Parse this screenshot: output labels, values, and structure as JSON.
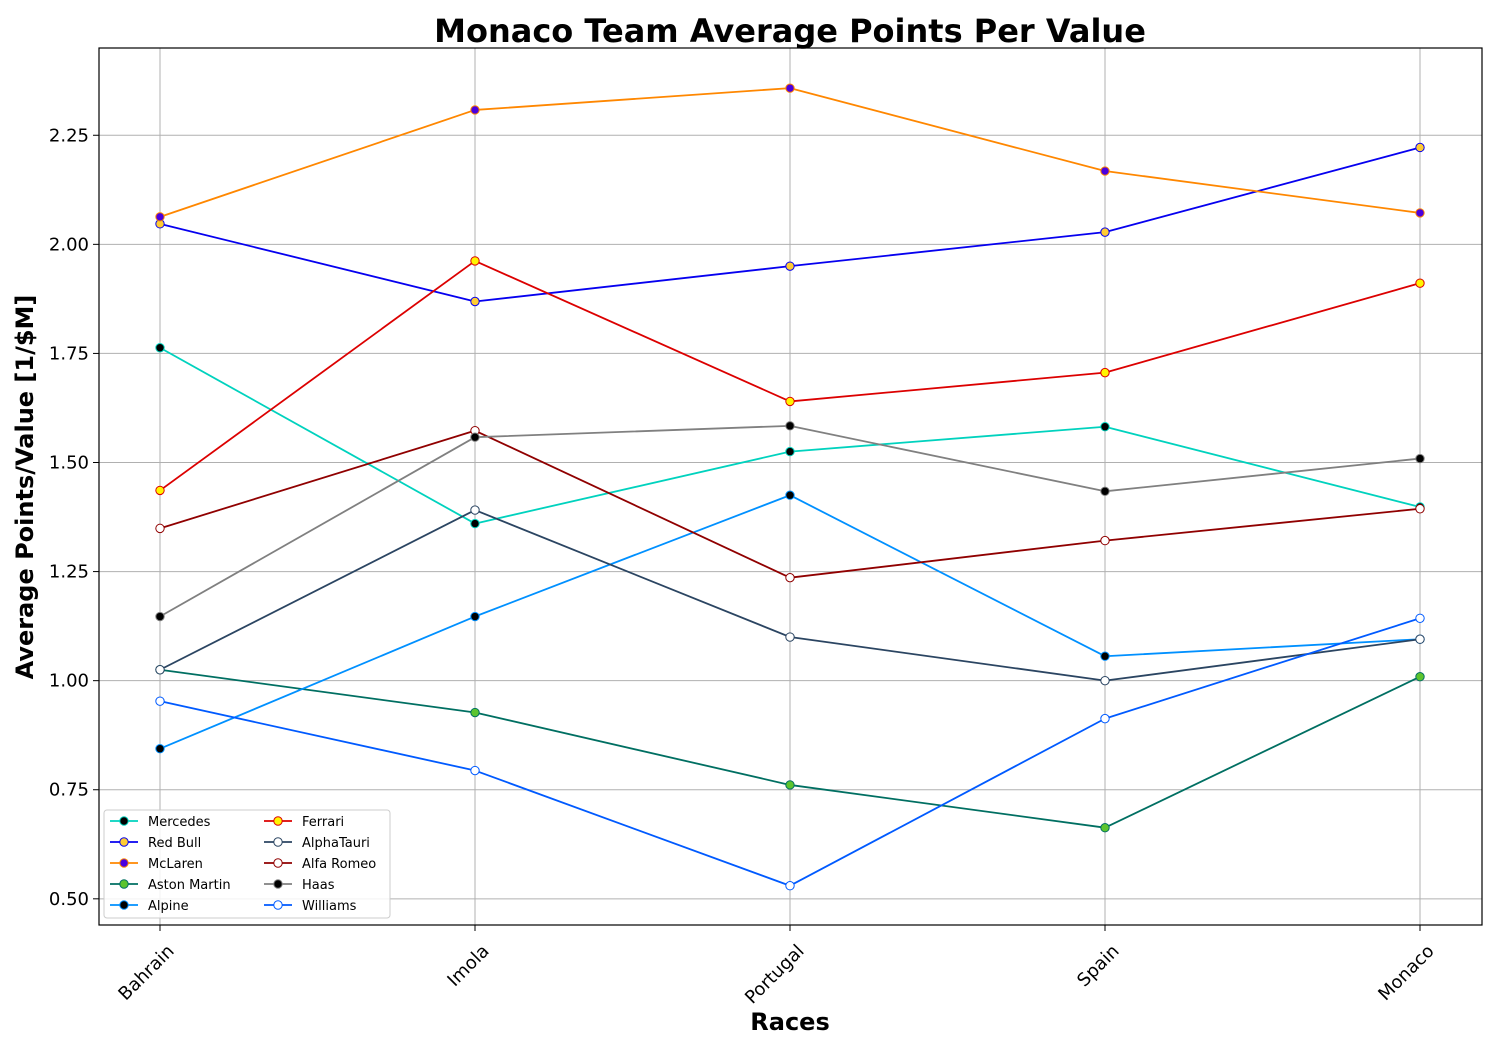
{
  "chart_data": {
    "type": "line",
    "title": "Monaco Team Average Points Per Value",
    "xlabel": "Races",
    "ylabel": "Average Points/Value [1/$M]",
    "categories": [
      "Bahrain",
      "Imola",
      "Portugal",
      "Spain",
      "Monaco"
    ],
    "ylim": [
      0.44,
      2.45
    ],
    "yticks": [
      0.5,
      0.75,
      1.0,
      1.25,
      1.5,
      1.75,
      2.0,
      2.25
    ],
    "ytick_labels": [
      "0.50",
      "0.75",
      "1.00",
      "1.25",
      "1.50",
      "1.75",
      "2.00",
      "2.25"
    ],
    "grid": true,
    "legend_placement": "lower-left",
    "legend_columns": 2,
    "series": [
      {
        "name": "Mercedes",
        "values": [
          1.763,
          1.36,
          1.525,
          1.582,
          1.398
        ],
        "line_color": "#00d2be",
        "marker_face": "#000000",
        "marker_edge": "#00d2be"
      },
      {
        "name": "Red Bull",
        "values": [
          2.047,
          1.869,
          1.95,
          2.028,
          2.222
        ],
        "line_color": "#0600ef",
        "marker_face": "#ffcc33",
        "marker_edge": "#0600ef"
      },
      {
        "name": "McLaren",
        "values": [
          2.063,
          2.308,
          2.358,
          2.168,
          2.072
        ],
        "line_color": "#ff8700",
        "marker_face": "#4a00e0",
        "marker_edge": "#ff8700"
      },
      {
        "name": "Aston Martin",
        "values": [
          1.025,
          0.927,
          0.761,
          0.663,
          1.009
        ],
        "line_color": "#006f62",
        "marker_face": "#5cc42e",
        "marker_edge": "#006f62"
      },
      {
        "name": "Alpine",
        "values": [
          0.844,
          1.147,
          1.425,
          1.056,
          1.095
        ],
        "line_color": "#0090ff",
        "marker_face": "#000000",
        "marker_edge": "#0090ff"
      },
      {
        "name": "Ferrari",
        "values": [
          1.436,
          1.962,
          1.64,
          1.706,
          1.911
        ],
        "line_color": "#dc0000",
        "marker_face": "#fff500",
        "marker_edge": "#dc0000"
      },
      {
        "name": "AlphaTauri",
        "values": [
          1.025,
          1.391,
          1.1,
          1.0,
          1.095
        ],
        "line_color": "#2b4562",
        "marker_face": "#ffffff",
        "marker_edge": "#2b4562"
      },
      {
        "name": "Alfa Romeo",
        "values": [
          1.349,
          1.573,
          1.236,
          1.321,
          1.394
        ],
        "line_color": "#900000",
        "marker_face": "#ffffff",
        "marker_edge": "#900000"
      },
      {
        "name": "Haas",
        "values": [
          1.147,
          1.558,
          1.584,
          1.434,
          1.509
        ],
        "line_color": "#808080",
        "marker_face": "#000000",
        "marker_edge": "#808080"
      },
      {
        "name": "Williams",
        "values": [
          0.953,
          0.794,
          0.53,
          0.913,
          1.143
        ],
        "line_color": "#005aff",
        "marker_face": "#ffffff",
        "marker_edge": "#005aff"
      }
    ]
  }
}
